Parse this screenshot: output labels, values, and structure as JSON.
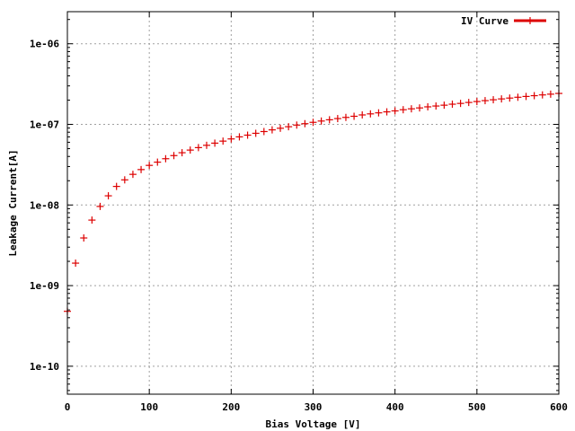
{
  "chart_data": {
    "type": "scatter",
    "title": "",
    "xlabel": "Bias Voltage [V]",
    "ylabel": "Leakage Current[A]",
    "xlim": [
      0,
      600
    ],
    "ylim": [
      4.5e-11,
      2.5e-06
    ],
    "yscale": "log",
    "grid": true,
    "legend": "top-right",
    "x_ticks": [
      {
        "value": 0,
        "label": "0"
      },
      {
        "value": 100,
        "label": "100"
      },
      {
        "value": 200,
        "label": "200"
      },
      {
        "value": 300,
        "label": "300"
      },
      {
        "value": 400,
        "label": "400"
      },
      {
        "value": 500,
        "label": "500"
      },
      {
        "value": 600,
        "label": "600"
      }
    ],
    "y_ticks": [
      {
        "value": 1e-10,
        "label": "1e-10"
      },
      {
        "value": 1e-09,
        "label": "1e-09"
      },
      {
        "value": 1e-08,
        "label": "1e-08"
      },
      {
        "value": 1e-07,
        "label": "1e-07"
      },
      {
        "value": 1e-06,
        "label": "1e-06"
      }
    ],
    "series": [
      {
        "name": "IV Curve",
        "color": "#dd0000",
        "marker": "plus",
        "x": [
          0,
          10,
          20,
          30,
          40,
          50,
          60,
          70,
          80,
          90,
          100,
          110,
          120,
          130,
          140,
          150,
          160,
          170,
          180,
          190,
          200,
          210,
          220,
          230,
          240,
          250,
          260,
          270,
          280,
          290,
          300,
          310,
          320,
          330,
          340,
          350,
          360,
          370,
          380,
          390,
          400,
          410,
          420,
          430,
          440,
          450,
          460,
          470,
          480,
          490,
          500,
          510,
          520,
          530,
          540,
          550,
          560,
          570,
          580,
          590,
          600
        ],
        "y": [
          4.8e-10,
          1.9e-09,
          3.9e-09,
          6.5e-09,
          9.6e-09,
          1.3e-08,
          1.7e-08,
          2.05e-08,
          2.4e-08,
          2.75e-08,
          3.1e-08,
          3.4e-08,
          3.75e-08,
          4.1e-08,
          4.45e-08,
          4.8e-08,
          5.15e-08,
          5.5e-08,
          5.85e-08,
          6.2e-08,
          6.6e-08,
          7e-08,
          7.35e-08,
          7.75e-08,
          8.15e-08,
          8.55e-08,
          8.95e-08,
          9.35e-08,
          9.8e-08,
          1.02e-07,
          1.06e-07,
          1.1e-07,
          1.14e-07,
          1.18e-07,
          1.22e-07,
          1.26e-07,
          1.31e-07,
          1.35e-07,
          1.39e-07,
          1.43e-07,
          1.47e-07,
          1.52e-07,
          1.56e-07,
          1.6e-07,
          1.65e-07,
          1.69e-07,
          1.73e-07,
          1.78e-07,
          1.82e-07,
          1.87e-07,
          1.92e-07,
          1.97e-07,
          2.02e-07,
          2.07e-07,
          2.12e-07,
          2.17e-07,
          2.22e-07,
          2.27e-07,
          2.32e-07,
          2.37e-07,
          2.42e-07
        ]
      }
    ]
  }
}
